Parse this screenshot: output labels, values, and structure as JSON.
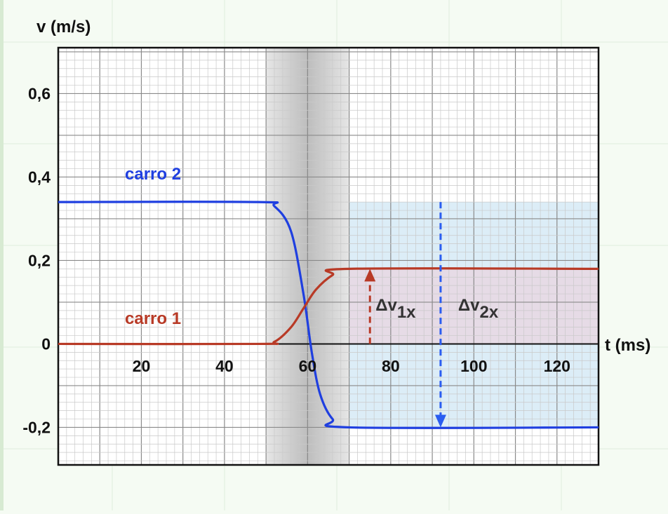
{
  "chart_data": {
    "type": "line",
    "title": "",
    "xlabel": "t (ms)",
    "ylabel": "v (m/s)",
    "xlim": [
      0,
      130
    ],
    "ylim": [
      -0.29,
      0.71
    ],
    "x_ticks": [
      20,
      40,
      60,
      80,
      100,
      120
    ],
    "x_tick_labels": [
      "20",
      "40",
      "60",
      "80",
      "100",
      "120"
    ],
    "y_ticks": [
      -0.2,
      0,
      0.2,
      0.4,
      0.6
    ],
    "y_tick_labels": [
      "-0,2",
      "0",
      "0,2",
      "0,4",
      "0,6"
    ],
    "grid": true,
    "collision_interval": [
      50,
      70
    ],
    "after_interval": [
      70,
      130
    ],
    "series": [
      {
        "name": "carro 2",
        "color": "#1f3fe0",
        "points": [
          [
            0,
            0.34
          ],
          [
            48,
            0.34
          ],
          [
            52,
            0.33
          ],
          [
            56,
            0.27
          ],
          [
            59,
            0.12
          ],
          [
            61,
            -0.02
          ],
          [
            63,
            -0.12
          ],
          [
            66,
            -0.18
          ],
          [
            70,
            -0.2
          ],
          [
            130,
            -0.2
          ]
        ]
      },
      {
        "name": "carro 1",
        "color": "#b83a26",
        "points": [
          [
            0,
            0.0
          ],
          [
            48,
            0.0
          ],
          [
            52,
            0.005
          ],
          [
            56,
            0.04
          ],
          [
            59,
            0.085
          ],
          [
            62,
            0.13
          ],
          [
            66,
            0.165
          ],
          [
            70,
            0.18
          ],
          [
            130,
            0.18
          ]
        ]
      }
    ],
    "annotations": [
      {
        "label": "Δv",
        "sub": "1x",
        "x": 75,
        "from": 0,
        "to": 0.18,
        "color": "#b83a26"
      },
      {
        "label": "Δv",
        "sub": "2x",
        "x": 92,
        "from": 0.34,
        "to": -0.2,
        "color": "#2a5cf0"
      }
    ]
  }
}
